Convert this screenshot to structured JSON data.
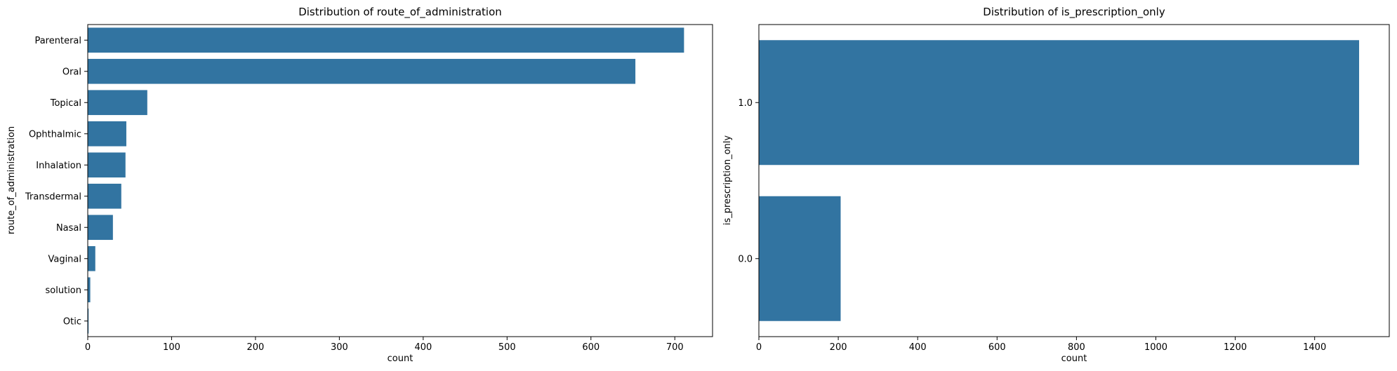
{
  "chart_data": [
    {
      "type": "bar",
      "orientation": "horizontal",
      "title": "Distribution of route_of_administration",
      "xlabel": "count",
      "ylabel": "route_of_administration",
      "categories": [
        "Parenteral",
        "Oral",
        "Topical",
        "Ophthalmic",
        "Inhalation",
        "Transdermal",
        "Nasal",
        "Vaginal",
        "solution",
        "Otic"
      ],
      "values": [
        711,
        653,
        71,
        46,
        45,
        40,
        30,
        9,
        3,
        1
      ],
      "xlim": [
        0,
        745
      ],
      "xticks": [
        0,
        100,
        200,
        300,
        400,
        500,
        600,
        700
      ],
      "color": "#3274a1",
      "grid": false
    },
    {
      "type": "bar",
      "orientation": "horizontal",
      "title": "Distribution of is_prescription_only",
      "xlabel": "count",
      "ylabel": "is_prescription_only",
      "categories": [
        "1.0",
        "0.0"
      ],
      "values": [
        1512,
        206
      ],
      "xlim": [
        0,
        1588
      ],
      "xticks": [
        0,
        200,
        400,
        600,
        800,
        1000,
        1200,
        1400
      ],
      "color": "#3274a1",
      "grid": false
    }
  ]
}
